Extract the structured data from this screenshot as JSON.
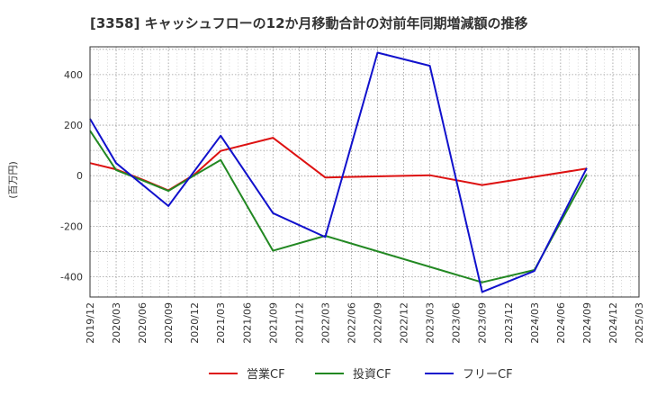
{
  "chart_data": {
    "type": "line",
    "title": "[3358]  キャッシュフローの12か月移動合計の対前年同期増減額の推移",
    "ylabel": "(百万円)",
    "xlabel": "",
    "x": [
      "2019/12",
      "2020/03",
      "2020/06",
      "2020/09",
      "2020/12",
      "2021/03",
      "2021/06",
      "2021/09",
      "2021/12",
      "2022/03",
      "2022/06",
      "2022/09",
      "2022/12",
      "2023/03",
      "2023/06",
      "2023/09",
      "2023/12",
      "2024/03",
      "2024/06",
      "2024/09",
      "2024/12",
      "2025/03"
    ],
    "ylim": [
      -480,
      510
    ],
    "yticks": [
      400,
      200,
      0,
      -200,
      -400
    ],
    "ytick_labels": [
      "400",
      "200",
      "0",
      "-200",
      "-400"
    ],
    "grid": true,
    "legend_position": "bottom",
    "series": [
      {
        "name": "営業CF",
        "color": "#dd1111",
        "values": [
          50,
          25,
          -15,
          -58,
          5,
          98,
          null,
          150,
          null,
          -7,
          null,
          null,
          null,
          2,
          null,
          -37,
          null,
          null,
          null,
          28,
          null,
          null
        ]
      },
      {
        "name": "投資CF",
        "color": "#228822",
        "values": [
          178,
          22,
          -18,
          -60,
          2,
          62,
          null,
          -297,
          null,
          -238,
          null,
          null,
          null,
          null,
          null,
          -422,
          null,
          -373,
          null,
          5,
          null,
          null
        ]
      },
      {
        "name": "フリーCF",
        "color": "#1111cc",
        "values": [
          225,
          50,
          null,
          -120,
          null,
          158,
          null,
          -148,
          null,
          -243,
          null,
          487,
          null,
          435,
          null,
          -460,
          null,
          -377,
          null,
          30,
          null,
          null
        ]
      }
    ]
  }
}
